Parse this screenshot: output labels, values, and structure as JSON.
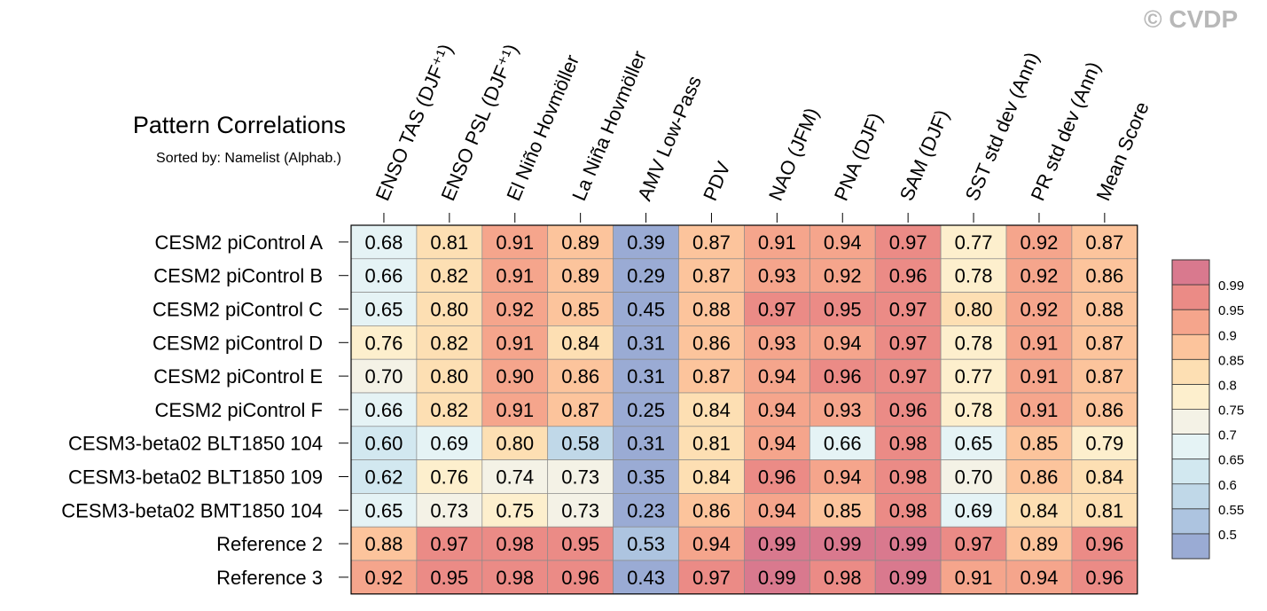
{
  "chart_data": {
    "type": "heatmap",
    "title": "Pattern Correlations",
    "subtitle": "Sorted by: Namelist (Alphab.)",
    "watermark": "© CVDP",
    "columns": [
      "ENSO TAS (DJF⁺¹)",
      "ENSO PSL (DJF⁺¹)",
      "El Niño Hovmöller",
      "La Niña Hovmöller",
      "AMV Low-Pass",
      "PDV",
      "NAO (JFM)",
      "PNA (DJF)",
      "SAM (DJF)",
      "SST std dev (Ann)",
      "PR std dev (Ann)",
      "Mean Score"
    ],
    "rows": [
      "CESM2 piControl A",
      "CESM2 piControl B",
      "CESM2 piControl C",
      "CESM2 piControl D",
      "CESM2 piControl E",
      "CESM2 piControl F",
      "CESM3-beta02 BLT1850 104",
      "CESM3-beta02 BLT1850 109",
      "CESM3-beta02 BMT1850 104",
      "Reference 2",
      "Reference 3"
    ],
    "values": [
      [
        "0.68",
        "0.81",
        "0.91",
        "0.89",
        "0.39",
        "0.87",
        "0.91",
        "0.94",
        "0.97",
        "0.77",
        "0.92",
        "0.87"
      ],
      [
        "0.66",
        "0.82",
        "0.91",
        "0.89",
        "0.29",
        "0.87",
        "0.93",
        "0.92",
        "0.96",
        "0.78",
        "0.92",
        "0.86"
      ],
      [
        "0.65",
        "0.80",
        "0.92",
        "0.85",
        "0.45",
        "0.88",
        "0.97",
        "0.95",
        "0.97",
        "0.80",
        "0.92",
        "0.88"
      ],
      [
        "0.76",
        "0.82",
        "0.91",
        "0.84",
        "0.31",
        "0.86",
        "0.93",
        "0.94",
        "0.97",
        "0.78",
        "0.91",
        "0.87"
      ],
      [
        "0.70",
        "0.80",
        "0.90",
        "0.86",
        "0.31",
        "0.87",
        "0.94",
        "0.96",
        "0.97",
        "0.77",
        "0.91",
        "0.87"
      ],
      [
        "0.66",
        "0.82",
        "0.91",
        "0.87",
        "0.25",
        "0.84",
        "0.94",
        "0.93",
        "0.96",
        "0.78",
        "0.91",
        "0.86"
      ],
      [
        "0.60",
        "0.69",
        "0.80",
        "0.58",
        "0.31",
        "0.81",
        "0.94",
        "0.66",
        "0.98",
        "0.65",
        "0.85",
        "0.79"
      ],
      [
        "0.62",
        "0.76",
        "0.74",
        "0.73",
        "0.35",
        "0.84",
        "0.96",
        "0.94",
        "0.98",
        "0.70",
        "0.86",
        "0.84"
      ],
      [
        "0.65",
        "0.73",
        "0.75",
        "0.73",
        "0.23",
        "0.86",
        "0.94",
        "0.85",
        "0.98",
        "0.69",
        "0.84",
        "0.81"
      ],
      [
        "0.88",
        "0.97",
        "0.98",
        "0.95",
        "0.53",
        "0.94",
        "0.99",
        "0.99",
        "0.99",
        "0.97",
        "0.89",
        "0.96"
      ],
      [
        "0.92",
        "0.95",
        "0.98",
        "0.96",
        "0.43",
        "0.97",
        "0.99",
        "0.98",
        "0.99",
        "0.91",
        "0.94",
        "0.96"
      ]
    ],
    "colorbar": {
      "labels": [
        "0.99",
        "0.95",
        "0.9",
        "0.85",
        "0.8",
        "0.75",
        "0.7",
        "0.65",
        "0.6",
        "0.55",
        "0.5"
      ],
      "thresholds": [
        0.5,
        0.55,
        0.6,
        0.65,
        0.7,
        0.75,
        0.8,
        0.85,
        0.9,
        0.95,
        0.99
      ],
      "colors": [
        "#9aabd4",
        "#adc4e0",
        "#c0d8e8",
        "#d2e8f0",
        "#e5f3f5",
        "#f4f2e6",
        "#fdefcd",
        "#fddfb3",
        "#fcc49c",
        "#f5a58c",
        "#eb8b86",
        "#d9798e"
      ]
    }
  }
}
